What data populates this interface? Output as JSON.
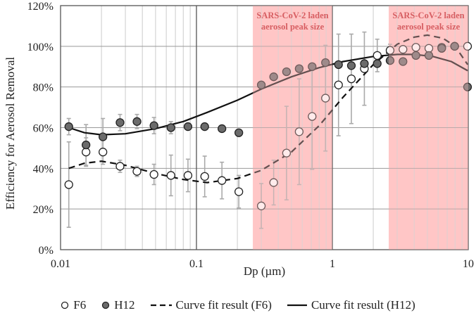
{
  "chart_data": {
    "type": "scatter",
    "title": "",
    "xlabel": "Dp (µm)",
    "ylabel": "Efficiency for Aerosol Removal",
    "x_scale": "log",
    "xlim": [
      0.01,
      10
    ],
    "ylim": [
      0,
      120
    ],
    "x_ticks": [
      "0.01",
      "0.1",
      "1",
      "10"
    ],
    "y_ticks": [
      "0%",
      "20%",
      "40%",
      "60%",
      "80%",
      "100%",
      "120%"
    ],
    "grid": true,
    "legend_position": "bottom",
    "highlight_bands": [
      {
        "label_line1": "SARS-CoV-2 laden",
        "label_line2": "aerosol peak size",
        "x_range": [
          0.26,
          1.0
        ],
        "color": "#ffc7c7"
      },
      {
        "label_line1": "SARS-CoV-2 laden",
        "label_line2": "aerosol peak size",
        "x_range": [
          2.6,
          10
        ],
        "color": "#ffc7c7"
      }
    ],
    "series": [
      {
        "name": "F6",
        "kind": "points",
        "marker": "open-circle",
        "x": [
          0.0115,
          0.0154,
          0.0205,
          0.0274,
          0.0365,
          0.0487,
          0.0649,
          0.0866,
          0.115,
          0.154,
          0.205,
          0.3,
          0.37,
          0.46,
          0.57,
          0.71,
          0.89,
          1.11,
          1.38,
          1.72,
          2.14,
          2.66,
          3.31,
          4.12,
          5.13,
          6.38,
          7.94,
          9.88
        ],
        "y": [
          32,
          48,
          48,
          41,
          38.5,
          37,
          36.5,
          36.5,
          36,
          34,
          28.5,
          21.5,
          33,
          47.5,
          58,
          65.5,
          74.5,
          81,
          84,
          89,
          95.5,
          98,
          98.5,
          99.5,
          99,
          99.5,
          100,
          100
        ],
        "error": [
          21,
          7,
          6,
          3,
          2.5,
          5,
          10,
          8,
          10,
          9,
          8,
          11,
          11,
          23,
          26,
          26,
          26,
          25,
          22,
          18,
          8,
          3,
          0,
          0,
          0,
          0,
          0,
          0
        ]
      },
      {
        "name": "H12",
        "kind": "points",
        "marker": "filled-circle",
        "x": [
          0.0115,
          0.0154,
          0.0205,
          0.0274,
          0.0365,
          0.0487,
          0.0649,
          0.0866,
          0.115,
          0.154,
          0.205,
          0.3,
          0.37,
          0.46,
          0.57,
          0.71,
          0.89,
          1.11,
          1.38,
          1.72,
          2.14,
          2.66,
          3.31,
          4.12,
          5.13,
          6.38,
          7.94,
          9.88
        ],
        "y": [
          60.5,
          51.5,
          55.5,
          62.5,
          63,
          61,
          60,
          60.5,
          60.5,
          59.5,
          57.5,
          81,
          85,
          87.5,
          89,
          90,
          92,
          91,
          90.5,
          91.5,
          91.5,
          93,
          92.5,
          95.5,
          95.5,
          99,
          100,
          80
        ],
        "error": [
          4,
          10,
          9,
          4,
          3.5,
          4,
          3,
          0,
          0,
          0,
          0,
          0,
          0,
          0,
          0,
          0,
          0,
          0,
          0,
          0,
          0,
          0,
          0,
          0,
          0,
          0,
          0,
          0
        ]
      },
      {
        "name": "Curve fit result (F6)",
        "kind": "line",
        "style": "dashed",
        "x": [
          0.0115,
          0.015,
          0.02,
          0.03,
          0.05,
          0.08,
          0.12,
          0.2,
          0.3,
          0.5,
          0.8,
          1.2,
          2.0,
          3.0,
          4.0,
          5.0,
          6.5,
          8.0,
          9.9
        ],
        "y": [
          40,
          42.5,
          43.5,
          41.5,
          37.5,
          34.5,
          33,
          35,
          39,
          48,
          61,
          75,
          91,
          101,
          104.5,
          105.5,
          104,
          100,
          91
        ]
      },
      {
        "name": "Curve fit result (H12)",
        "kind": "line",
        "style": "solid",
        "x": [
          0.0115,
          0.015,
          0.02,
          0.03,
          0.05,
          0.08,
          0.12,
          0.2,
          0.3,
          0.5,
          0.8,
          1.2,
          2.0,
          3.0,
          4.0,
          5.5,
          7.5,
          9.9
        ],
        "y": [
          60,
          57.5,
          56.5,
          57,
          59.5,
          63,
          67.5,
          73.5,
          79,
          85,
          89.5,
          92.5,
          95,
          96,
          96,
          95,
          92.5,
          88
        ]
      }
    ],
    "legend": [
      {
        "label": "F6",
        "symbol": "open-circle"
      },
      {
        "label": "H12",
        "symbol": "filled-circle"
      },
      {
        "label": "Curve fit result (F6)",
        "symbol": "dashed-line"
      },
      {
        "label": "Curve fit result (H12)",
        "symbol": "solid-line"
      }
    ]
  },
  "colors": {
    "band": "#ffc7c7",
    "annotation": "#c0272d",
    "filled_marker": "#6b6b6b",
    "error_bar": "#aaaaaa",
    "grid_major": "#999999",
    "grid_minor": "#d4d4d4"
  }
}
